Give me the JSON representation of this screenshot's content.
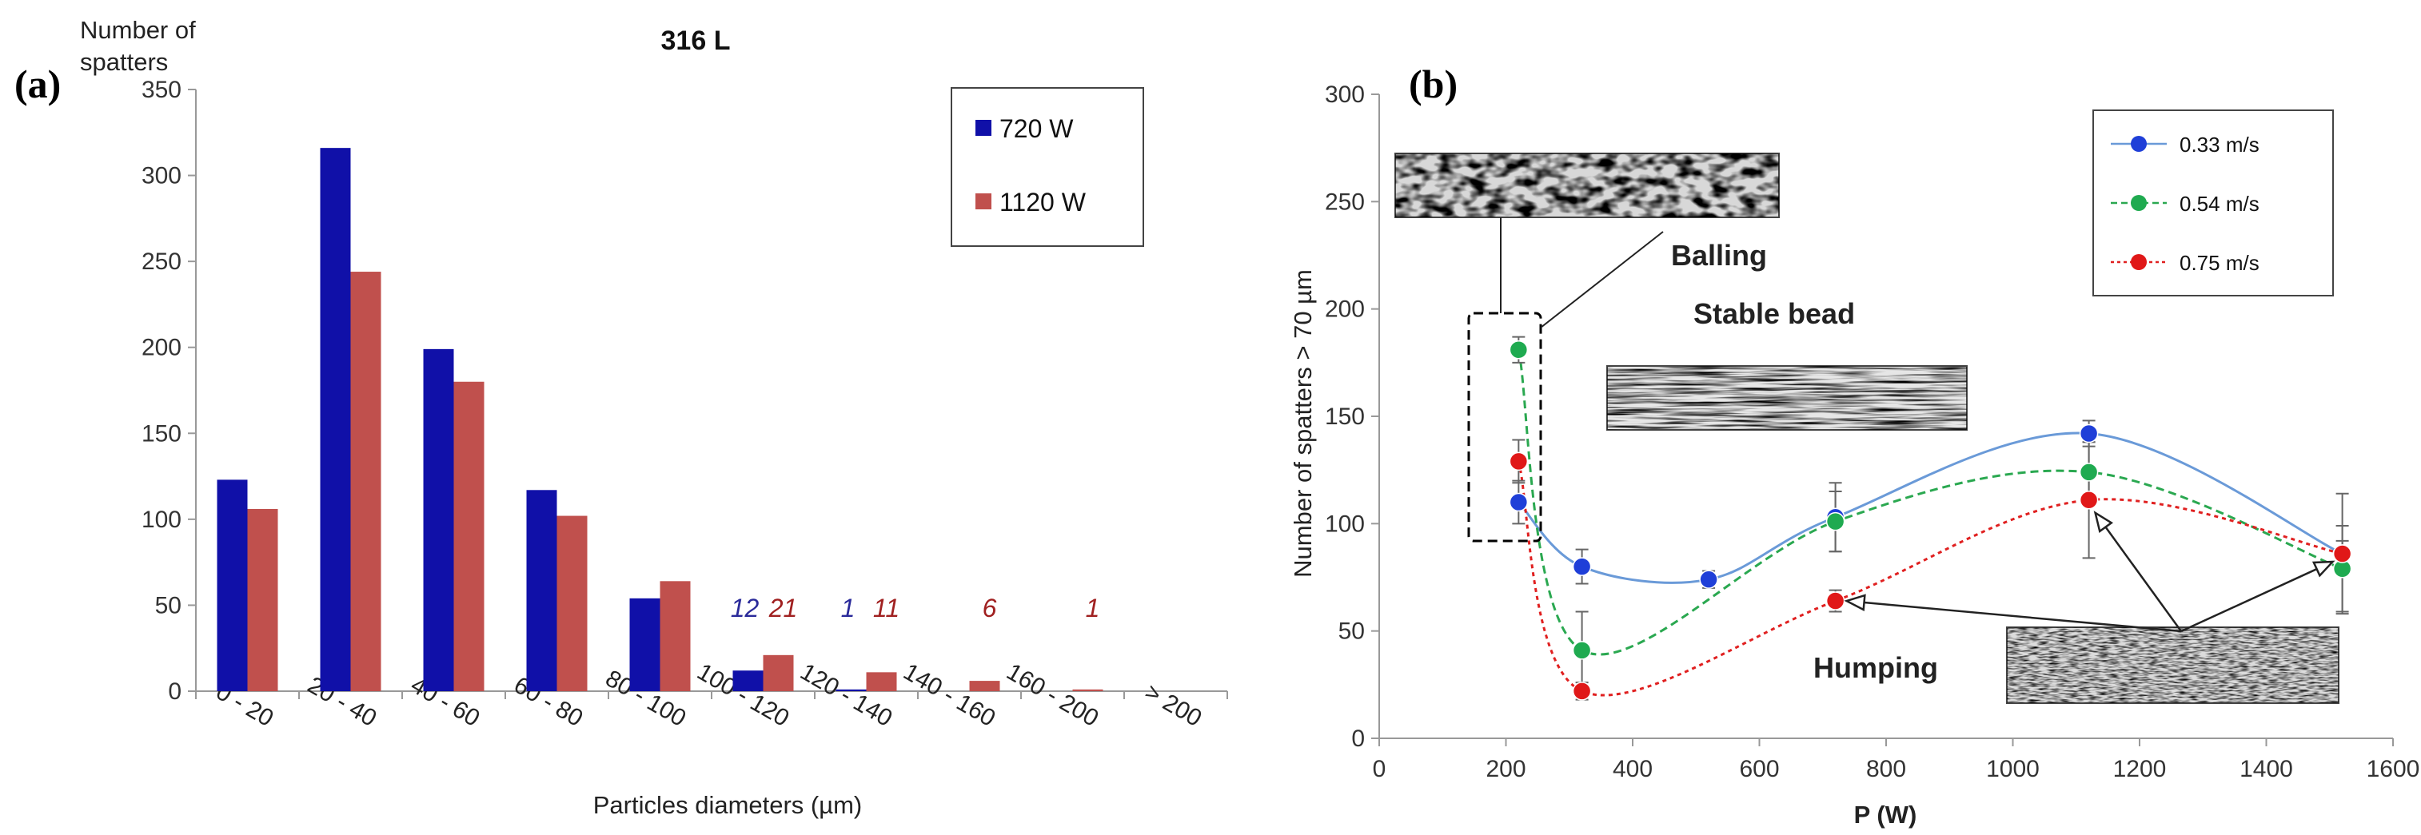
{
  "panel_a_label": "(a)",
  "panel_b_label": "(b)",
  "colors": {
    "series_720": "#1010a8",
    "series_1120": "#c0504d",
    "annot_720": "#2a2a9a",
    "annot_1120": "#a02020",
    "v033": "#1f3fd8",
    "v054": "#1faa50",
    "v075": "#e01818",
    "line_033": "#6a9ad8",
    "line_054": "#2aa850",
    "line_075": "#e02020"
  },
  "chart_data": [
    {
      "type": "bar",
      "title": "316 L",
      "ylabel_line1": "Number of",
      "ylabel_line2": "spatters",
      "xlabel": "Particles diameters (µm)",
      "ylim": [
        0,
        350
      ],
      "yticks": [
        "0",
        "50",
        "100",
        "150",
        "200",
        "250",
        "300",
        "350"
      ],
      "categories": [
        "0 - 20",
        "20 - 40",
        "40 - 60",
        "60 - 80",
        "80 - 100",
        "100 - 120",
        "120 - 140",
        "140 - 160",
        "160 - 200",
        "> 200"
      ],
      "series": [
        {
          "name": "720 W",
          "values": [
            123,
            316,
            199,
            117,
            54,
            12,
            1,
            0,
            0,
            0
          ]
        },
        {
          "name": "1120 W",
          "values": [
            106,
            244,
            180,
            102,
            64,
            21,
            11,
            6,
            1,
            0
          ]
        }
      ],
      "annotations": [
        {
          "text": "12",
          "series": "720 W",
          "category": "100 - 120"
        },
        {
          "text": "21",
          "series": "1120 W",
          "category": "100 - 120"
        },
        {
          "text": "1",
          "series": "720 W",
          "category": "120 - 140"
        },
        {
          "text": "11",
          "series": "1120 W",
          "category": "120 - 140"
        },
        {
          "text": "6",
          "series": "1120 W",
          "category": "140 - 160"
        },
        {
          "text": "1",
          "series": "1120 W",
          "category": "160 - 200"
        }
      ],
      "legend_position": "top-right"
    },
    {
      "type": "line",
      "ylabel": "Number of spatters > 70 µm",
      "xlabel": "P (W)",
      "xlim": [
        0,
        1600
      ],
      "ylim": [
        0,
        300
      ],
      "xticks": [
        "0",
        "200",
        "400",
        "600",
        "800",
        "1000",
        "1200",
        "1400",
        "1600"
      ],
      "yticks": [
        "0",
        "50",
        "100",
        "150",
        "200",
        "250",
        "300"
      ],
      "series": [
        {
          "name": "0.33 m/s",
          "points": [
            {
              "x": 220,
              "y": 110,
              "err": 10
            },
            {
              "x": 320,
              "y": 80,
              "err": 8
            },
            {
              "x": 520,
              "y": 74,
              "err": 4
            },
            {
              "x": 720,
              "y": 103,
              "err": 16
            },
            {
              "x": 1120,
              "y": 142,
              "err": 6
            },
            {
              "x": 1520,
              "y": 86,
              "err": 28
            }
          ]
        },
        {
          "name": "0.54 m/s",
          "points": [
            {
              "x": 220,
              "y": 181,
              "err": 6
            },
            {
              "x": 320,
              "y": 41,
              "err": 18
            },
            {
              "x": 720,
              "y": 101,
              "err": 14
            },
            {
              "x": 1120,
              "y": 124,
              "err": 14
            },
            {
              "x": 1520,
              "y": 79,
              "err": 20
            }
          ]
        },
        {
          "name": "0.75 m/s",
          "points": [
            {
              "x": 220,
              "y": 129,
              "err": 10
            },
            {
              "x": 320,
              "y": 22,
              "err": 4
            },
            {
              "x": 720,
              "y": 64,
              "err": 5
            },
            {
              "x": 1120,
              "y": 111,
              "err": 27
            },
            {
              "x": 1520,
              "y": 86,
              "err": 6
            }
          ]
        }
      ],
      "annotations": [
        "Balling",
        "Stable bead",
        "Humping"
      ],
      "legend_position": "top-right"
    }
  ]
}
